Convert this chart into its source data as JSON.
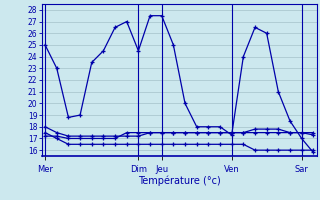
{
  "xlabel": "Température (°c)",
  "ylim": [
    15.5,
    28.5
  ],
  "yticks": [
    16,
    17,
    18,
    19,
    20,
    21,
    22,
    23,
    24,
    25,
    26,
    27,
    28
  ],
  "background_color": "#cce8ee",
  "line_color": "#0000aa",
  "grid_color": "#b0cdd4",
  "day_labels": [
    "Mer",
    "Dim",
    "Jeu",
    "Ven",
    "Sar"
  ],
  "day_x": [
    0,
    8,
    10,
    16,
    22
  ],
  "xlim": [
    -0.3,
    23.3
  ],
  "num_points": 24,
  "series": {
    "max_temp": [
      25.0,
      23.0,
      18.8,
      19.0,
      23.5,
      24.5,
      26.5,
      27.0,
      24.5,
      27.5,
      27.5,
      25.0,
      20.0,
      18.0,
      18.0,
      18.0,
      17.3,
      24.0,
      26.5,
      26.0,
      21.0,
      18.5,
      17.0,
      15.8
    ],
    "min_temp": [
      17.5,
      17.0,
      16.5,
      16.5,
      16.5,
      16.5,
      16.5,
      16.5,
      16.5,
      16.5,
      16.5,
      16.5,
      16.5,
      16.5,
      16.5,
      16.5,
      16.5,
      16.5,
      16.0,
      16.0,
      16.0,
      16.0,
      16.0,
      16.0
    ],
    "feel_temp": [
      18.0,
      17.5,
      17.2,
      17.2,
      17.2,
      17.2,
      17.2,
      17.2,
      17.2,
      17.5,
      17.5,
      17.5,
      17.5,
      17.5,
      17.5,
      17.5,
      17.5,
      17.5,
      17.8,
      17.8,
      17.8,
      17.5,
      17.5,
      17.3
    ],
    "dew_temp": [
      17.2,
      17.2,
      17.0,
      17.0,
      17.0,
      17.0,
      17.0,
      17.5,
      17.5,
      17.5,
      17.5,
      17.5,
      17.5,
      17.5,
      17.5,
      17.5,
      17.5,
      17.5,
      17.5,
      17.5,
      17.5,
      17.5,
      17.5,
      17.5
    ]
  }
}
